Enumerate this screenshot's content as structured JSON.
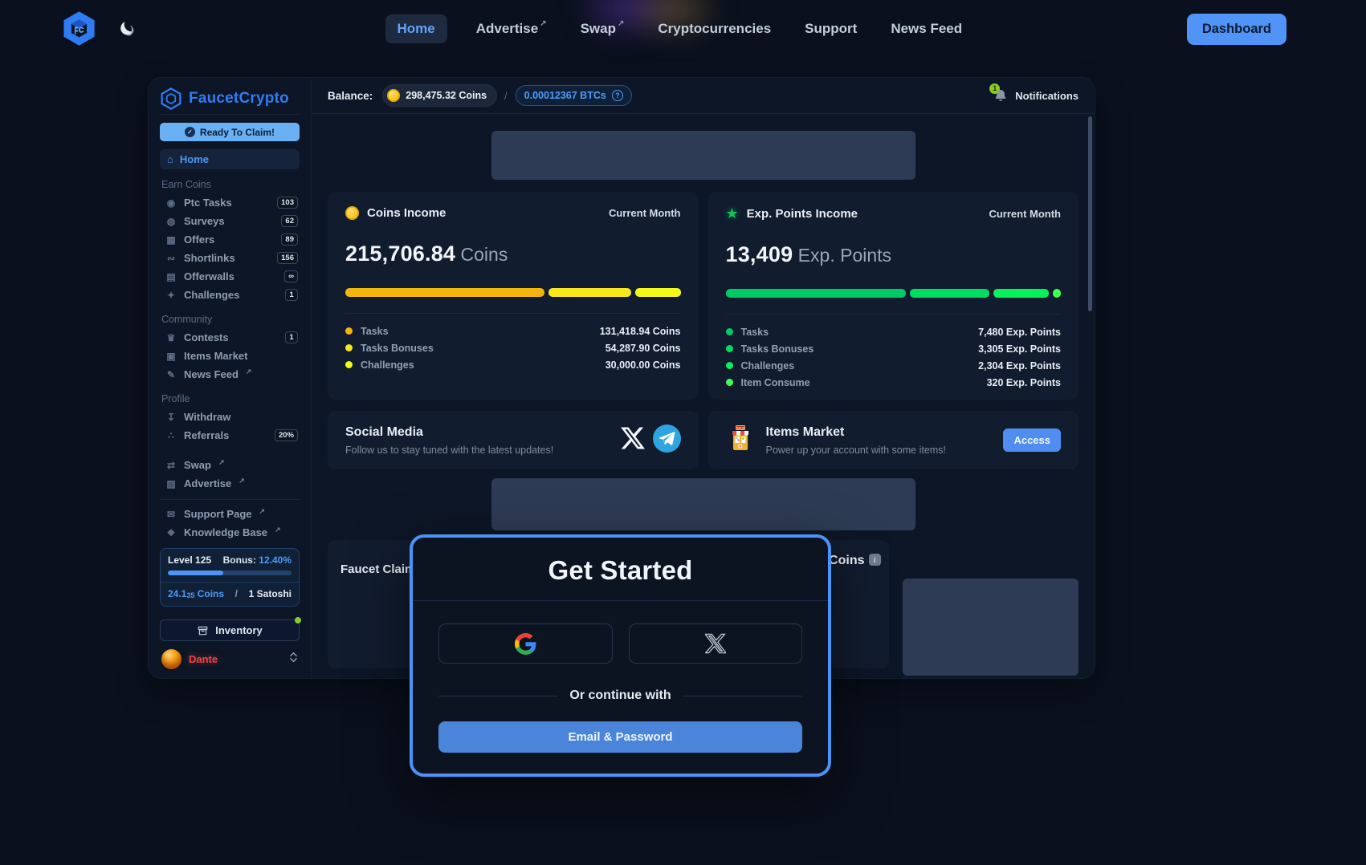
{
  "topnav": {
    "items": [
      {
        "label": "Home",
        "active": true,
        "external": false
      },
      {
        "label": "Advertise",
        "active": false,
        "external": true
      },
      {
        "label": "Swap",
        "active": false,
        "external": true
      },
      {
        "label": "Cryptocurrencies",
        "active": false,
        "external": false
      },
      {
        "label": "Support",
        "active": false,
        "external": false
      },
      {
        "label": "News Feed",
        "active": false,
        "external": false
      }
    ],
    "dashboard_label": "Dashboard"
  },
  "sidebar": {
    "brand": "FaucetCrypto",
    "claim_button": "Ready To Claim!",
    "home_label": "Home",
    "sections": [
      {
        "title": "Earn Coins",
        "divider": false,
        "items": [
          {
            "icon": "ptc-tasks",
            "label": "Ptc Tasks",
            "badge": "103",
            "external": false
          },
          {
            "icon": "surveys",
            "label": "Surveys",
            "badge": "62",
            "external": false
          },
          {
            "icon": "offers",
            "label": "Offers",
            "badge": "89",
            "external": false
          },
          {
            "icon": "shortlinks",
            "label": "Shortlinks",
            "badge": "156",
            "external": false
          },
          {
            "icon": "offerwalls",
            "label": "Offerwalls",
            "badge": "∞",
            "external": false
          },
          {
            "icon": "challenges",
            "label": "Challenges",
            "badge": "1",
            "external": false
          }
        ]
      },
      {
        "title": "Community",
        "divider": false,
        "items": [
          {
            "icon": "contests",
            "label": "Contests",
            "badge": "1",
            "external": false
          },
          {
            "icon": "items-market",
            "label": "Items Market",
            "badge": "",
            "external": false
          },
          {
            "icon": "news-feed",
            "label": "News Feed",
            "badge": "",
            "external": true
          }
        ]
      },
      {
        "title": "Profile",
        "divider": false,
        "items": [
          {
            "icon": "withdraw",
            "label": "Withdraw",
            "badge": "",
            "external": false
          },
          {
            "icon": "referrals",
            "label": "Referrals",
            "badge": "20%",
            "external": false
          }
        ]
      },
      {
        "title": "",
        "divider": false,
        "spacer": true,
        "items": [
          {
            "icon": "swap",
            "label": "Swap",
            "badge": "",
            "external": true
          },
          {
            "icon": "advertise",
            "label": "Advertise",
            "badge": "",
            "external": true
          }
        ]
      },
      {
        "title": "",
        "divider": true,
        "items": [
          {
            "icon": "support-page",
            "label": "Support Page",
            "badge": "",
            "external": true
          },
          {
            "icon": "knowledge-base",
            "label": "Knowledge Base",
            "badge": "",
            "external": true
          }
        ]
      }
    ],
    "level_card": {
      "level": "Level 125",
      "bonus_label": "Bonus:",
      "bonus_value": "12.40%",
      "progress_pct": 45,
      "coins_main": "24.1",
      "coins_sub": "35",
      "coins_unit": " Coins",
      "separator": "/",
      "satoshi": "1 Satoshi"
    },
    "inventory_label": "Inventory",
    "user_name": "Dante"
  },
  "topbar": {
    "balance_label": "Balance:",
    "coins_balance": "298,475.32 Coins",
    "separator": "/",
    "btc_balance": "0.00012367 BTCs",
    "help_glyph": "?",
    "notifications_count": "1",
    "notifications_label": "Notifications"
  },
  "income_cards": [
    {
      "id": "coins-income",
      "icon": "coin",
      "title": "Coins Income",
      "period": "Current Month",
      "amount": "215,706.84",
      "unit": " Coins",
      "rows": [
        {
          "label": "Tasks",
          "value": "131,418.94 Coins",
          "color": "#f2b50c",
          "pct": 60.9
        },
        {
          "label": "Tasks Bonuses",
          "value": "54,287.90 Coins",
          "color": "#f7e71c",
          "pct": 25.2
        },
        {
          "label": "Challenges",
          "value": "30,000.00 Coins",
          "color": "#f4fb1a",
          "pct": 13.9
        }
      ]
    },
    {
      "id": "exp-points-income",
      "icon": "star",
      "title": "Exp. Points Income",
      "period": "Current Month",
      "amount": "13,409",
      "unit": " Exp. Points",
      "rows": [
        {
          "label": "Tasks",
          "value": "7,480 Exp. Points",
          "color": "#00c966",
          "pct": 55.8
        },
        {
          "label": "Tasks Bonuses",
          "value": "3,305 Exp. Points",
          "color": "#00dd60",
          "pct": 24.6
        },
        {
          "label": "Challenges",
          "value": "2,304 Exp. Points",
          "color": "#06f25b",
          "pct": 17.2
        },
        {
          "label": "Item Consume",
          "value": "320 Exp. Points",
          "color": "#3bff52",
          "pct": 2.4
        }
      ]
    }
  ],
  "social_card": {
    "title": "Social Media",
    "subtitle": "Follow us to stay tuned with the latest updates!"
  },
  "items_market_card": {
    "title": "Items Market",
    "subtitle": "Power up your account with some items!",
    "button_label": "Access"
  },
  "faucet_card": {
    "title": "Faucet Claim",
    "reward": "4 Coins"
  },
  "modal": {
    "title": "Get Started",
    "or_text": "Or continue with",
    "email_button": "Email & Password"
  },
  "icons": {
    "home": "⌂",
    "ptc-tasks": "◉",
    "surveys": "◍",
    "offers": "▦",
    "shortlinks": "∾",
    "offerwalls": "▤",
    "challenges": "✦",
    "contests": "♛",
    "items-market": "▣",
    "news-feed": "✎",
    "withdraw": "↧",
    "referrals": "∴",
    "swap": "⇄",
    "advertise": "▨",
    "support-page": "✉",
    "knowledge-base": "❖",
    "external": "↗",
    "check": "✓",
    "star": "★",
    "chevrons": "⇅",
    "info": "i"
  },
  "colors": {
    "accent_blue": "#4f94f6",
    "brand_blue": "#2f7cf3",
    "coin_yellow": "#f8c623",
    "exp_green": "#0bc75a",
    "notification_green": "#8bc926",
    "user_red": "#ef4444"
  }
}
